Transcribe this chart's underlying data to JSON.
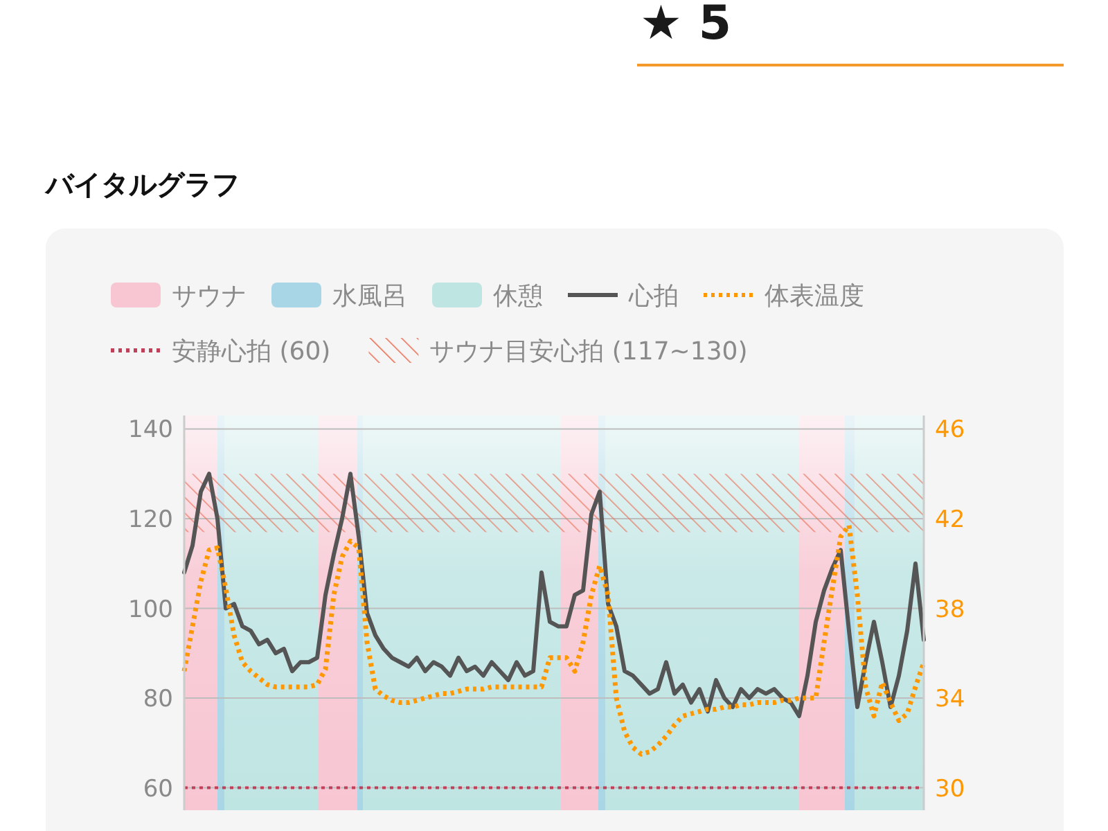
{
  "chart_data": {
    "type": "line",
    "title": "バイタルグラフ",
    "annotations": [
      "★ 5",
      "サウナ",
      "水風呂",
      "休憩"
    ],
    "categories": [
      null,
      null,
      null,
      null,
      null,
      null,
      null,
      null,
      null,
      null,
      null,
      null,
      null,
      null,
      null,
      null,
      null,
      null,
      null,
      null,
      null,
      null,
      null,
      null,
      null,
      null,
      null,
      null,
      null,
      null,
      null,
      null,
      null,
      null,
      null,
      null,
      null,
      null,
      null,
      null,
      null,
      null,
      null,
      null,
      null,
      null,
      null,
      null,
      null,
      null,
      null,
      null,
      null,
      null,
      null,
      null,
      null,
      null,
      null,
      null,
      null,
      null,
      null,
      null,
      null,
      null,
      null,
      null,
      null,
      null,
      null,
      null,
      null,
      null,
      null,
      null,
      null,
      null,
      null,
      null,
      null,
      null,
      null,
      null,
      null,
      null,
      null,
      null,
      null,
      null
    ],
    "series": [
      {
        "name": "心拍",
        "color": "#555555",
        "line_style": "solid",
        "values": [
          108,
          114,
          126,
          130,
          120,
          100,
          101,
          96,
          95,
          92,
          93,
          90,
          91,
          86,
          88,
          88,
          89,
          103,
          112,
          120,
          130,
          116,
          99,
          94,
          91,
          89,
          88,
          87,
          89,
          86,
          88,
          87,
          85,
          89,
          86,
          87,
          85,
          88,
          86,
          84,
          88,
          85,
          86,
          108,
          97,
          96,
          96,
          103,
          104,
          121,
          126,
          101,
          96,
          86,
          85,
          83,
          81,
          82,
          88,
          81,
          83,
          79,
          82,
          77,
          84,
          80,
          78,
          82,
          80,
          82,
          81,
          82,
          80,
          79,
          76,
          85,
          97,
          104,
          109,
          113,
          95,
          78,
          88,
          97,
          88,
          78,
          85,
          95,
          110,
          93
        ]
      },
      {
        "name": "体表温度",
        "color": "#ff9800",
        "line_style": "dotted",
        "axis": "y2",
        "values": [
          35.2,
          37.2,
          39.2,
          40.6,
          40.7,
          38.9,
          36.8,
          35.6,
          35.2,
          34.9,
          34.6,
          34.5,
          34.5,
          34.5,
          34.5,
          34.5,
          34.6,
          35.3,
          38.6,
          40.3,
          41,
          40.7,
          36.5,
          34.4,
          34.1,
          33.9,
          33.8,
          33.8,
          33.9,
          34,
          34.1,
          34.2,
          34.2,
          34.3,
          34.4,
          34.4,
          34.4,
          34.5,
          34.5,
          34.5,
          34.5,
          34.5,
          34.5,
          34.5,
          35.8,
          35.8,
          35.8,
          35.2,
          36.5,
          38.6,
          39.9,
          38.6,
          34,
          32.5,
          31.8,
          31.5,
          31.6,
          31.9,
          32.3,
          32.8,
          33.2,
          33.3,
          33.4,
          33.5,
          33.5,
          33.6,
          33.6,
          33.7,
          33.7,
          33.8,
          33.8,
          33.8,
          33.9,
          33.9,
          34,
          34,
          34,
          36.5,
          38.9,
          41.2,
          41.7,
          38.6,
          34.5,
          33.2,
          34.7,
          33.8,
          33,
          33.3,
          34.5,
          35.6
        ]
      }
    ],
    "ylim": [
      55,
      143
    ],
    "yticks": [
      60,
      80,
      100,
      120,
      140
    ],
    "y2lim": [
      29,
      46.6
    ],
    "y2ticks": [
      30,
      34,
      38,
      42,
      46
    ],
    "grid": "y",
    "legend": "top",
    "marker": "none",
    "ref_lines": [
      {
        "axis": "y",
        "value": 60,
        "label": "安静心拍 (60)",
        "color": "#c0405a",
        "line_style": "dotted"
      }
    ],
    "bands": [
      {
        "axis": "y",
        "from": 117,
        "to": 130,
        "label": "サウナ目安心拍 (117~130)",
        "color": "#e8735a"
      }
    ]
  }
}
